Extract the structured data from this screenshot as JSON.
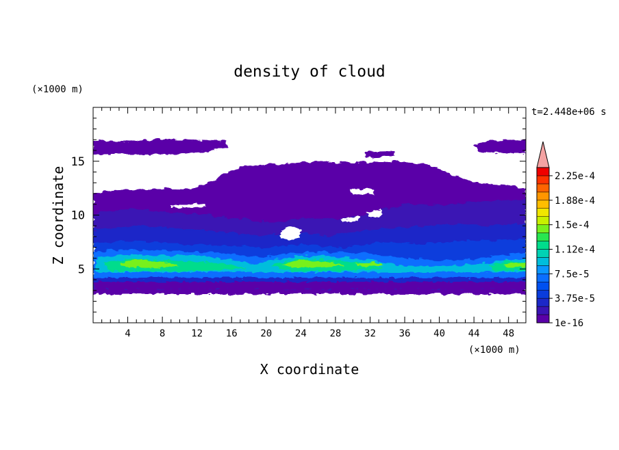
{
  "chart_data": {
    "type": "heatmap",
    "title": "density of cloud",
    "xlabel": "X coordinate",
    "ylabel": "Z coordinate",
    "x_unit": "(×1000 m)",
    "y_unit": "(×1000 m)",
    "time_label": "t=2.448e+06 s",
    "xlim": [
      0,
      50
    ],
    "ylim": [
      0,
      20
    ],
    "x_ticks": [
      "4",
      "8",
      "12",
      "16",
      "20",
      "24",
      "28",
      "32",
      "36",
      "40",
      "44",
      "48"
    ],
    "y_ticks": [
      "5",
      "10",
      "15"
    ],
    "colorbar": {
      "min": 1e-16,
      "max": 0.00024,
      "labels": [
        "2.25e-4",
        "1.88e-4",
        "1.5e-4",
        "1.12e-4",
        "7.5e-5",
        "3.75e-5",
        "1e-16"
      ],
      "colors": [
        "#5a00a8",
        "#3a14b4",
        "#1c28c8",
        "#0a3cdc",
        "#0050f0",
        "#0a6eff",
        "#0a96ff",
        "#00bedc",
        "#00d2b4",
        "#00dc8c",
        "#28e650",
        "#78f01e",
        "#c8f000",
        "#f0e600",
        "#ffbe00",
        "#ff9600",
        "#ff6400",
        "#ff3200",
        "#f00000"
      ],
      "extend_color": "#f4a3a3"
    },
    "grid": false,
    "legend": "colorbar-right"
  }
}
